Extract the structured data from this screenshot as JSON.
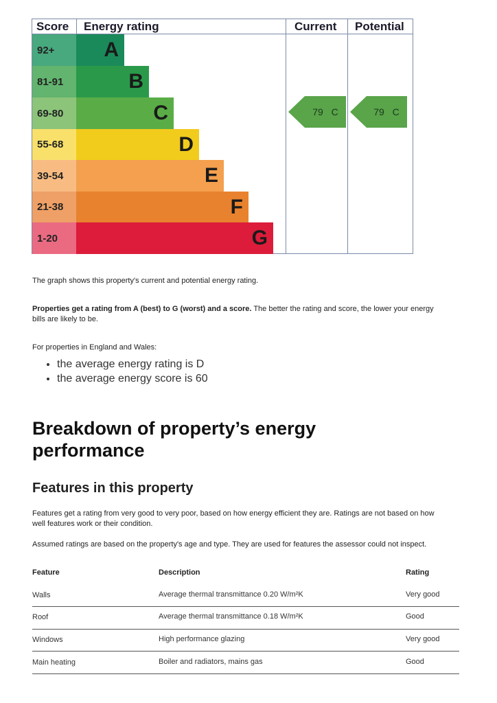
{
  "epc": {
    "headers": [
      "Score",
      "Energy rating",
      "Current",
      "Potential"
    ],
    "bands": [
      {
        "score": "92+",
        "letter": "A"
      },
      {
        "score": "81-91",
        "letter": "B"
      },
      {
        "score": "69-80",
        "letter": "C"
      },
      {
        "score": "55-68",
        "letter": "D"
      },
      {
        "score": "39-54",
        "letter": "E"
      },
      {
        "score": "21-38",
        "letter": "F"
      },
      {
        "score": "1-20",
        "letter": "G"
      }
    ],
    "current": "79 C",
    "potential": "79 C"
  },
  "intro": "The graph shows this property's current and potential energy rating.",
  "rating_info": {
    "bold": "Properties get a rating from A (best) to G (worst) and a score.",
    "rest": " The better the rating and score, the lower your energy bills are likely to be."
  },
  "average_intro": "For properties in England and Wales:",
  "averages": [
    "the average energy rating is D",
    "the average energy score is 60"
  ],
  "breakdown_title": "Breakdown of property’s energy performance",
  "features_title": "Features in this property",
  "features_text": [
    "Features get a rating from very good to very poor, based on how energy efficient they are. Ratings are not based on how well features work or their condition.",
    "Assumed ratings are based on the property's age and type. They are used for features the assessor could not inspect."
  ],
  "table": {
    "headers": [
      "Feature",
      "Description",
      "Rating"
    ],
    "rows": [
      [
        "Walls",
        "Average thermal transmittance 0.20 W/m²K",
        "Very good"
      ],
      [
        "Roof",
        "Average thermal transmittance 0.18 W/m²K",
        "Good"
      ],
      [
        "Windows",
        "High performance glazing",
        "Very good"
      ],
      [
        "Main heating",
        "Boiler and radiators, mains gas",
        "Good"
      ]
    ]
  }
}
